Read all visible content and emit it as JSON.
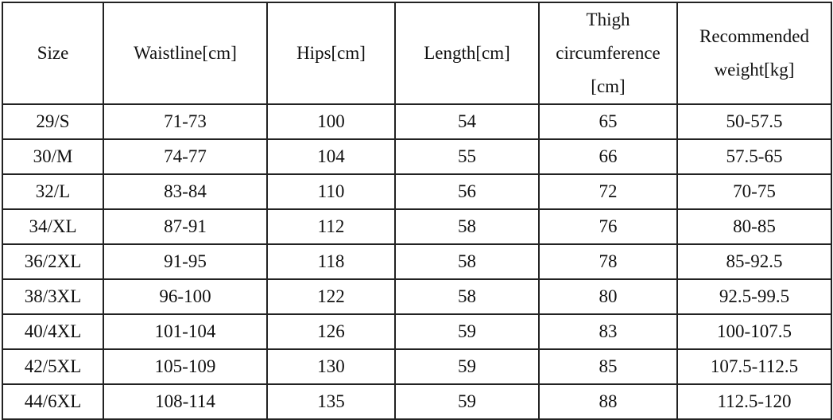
{
  "table": {
    "header": [
      "Size",
      "Waistline[cm]",
      "Hips[cm]",
      "Length[cm]",
      "Thigh circumference [cm]",
      "Recommended weight[kg]"
    ],
    "rows": [
      [
        "29/S",
        "71-73",
        "100",
        "54",
        "65",
        "50-57.5"
      ],
      [
        "30/M",
        "74-77",
        "104",
        "55",
        "66",
        "57.5-65"
      ],
      [
        "32/L",
        "83-84",
        "110",
        "56",
        "72",
        "70-75"
      ],
      [
        "34/XL",
        "87-91",
        "112",
        "58",
        "76",
        "80-85"
      ],
      [
        "36/2XL",
        "91-95",
        "118",
        "58",
        "78",
        "85-92.5"
      ],
      [
        "38/3XL",
        "96-100",
        "122",
        "58",
        "80",
        "92.5-99.5"
      ],
      [
        "40/4XL",
        "101-104",
        "126",
        "59",
        "83",
        "100-107.5"
      ],
      [
        "42/5XL",
        "105-109",
        "130",
        "59",
        "85",
        "107.5-112.5"
      ],
      [
        "44/6XL",
        "108-114",
        "135",
        "59",
        "88",
        "112.5-120"
      ]
    ]
  }
}
